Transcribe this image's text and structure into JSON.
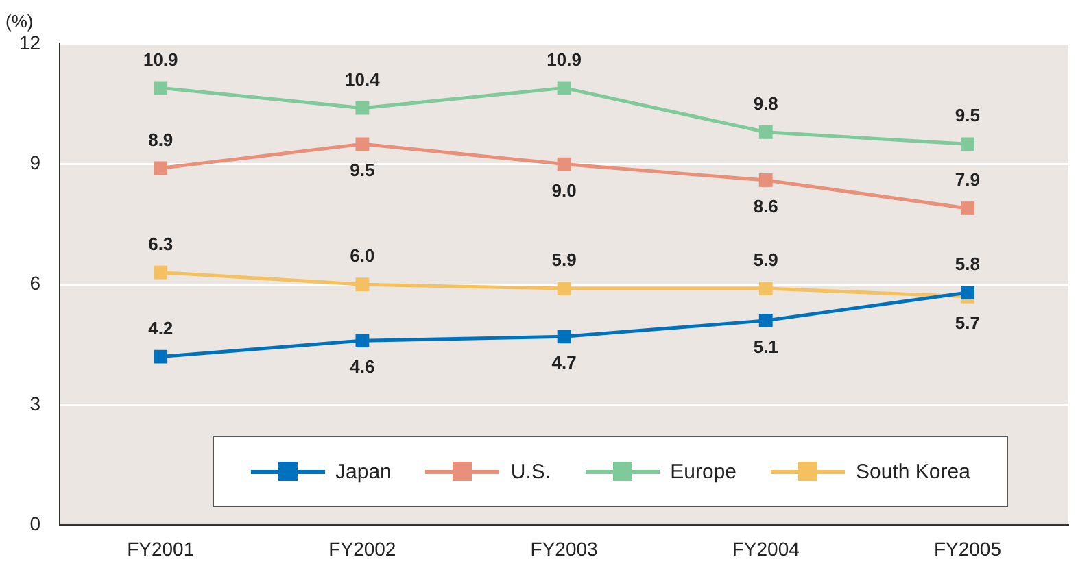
{
  "chart_data": {
    "type": "line",
    "ylabel": "(%)",
    "categories": [
      "FY2001",
      "FY2002",
      "FY2003",
      "FY2004",
      "FY2005"
    ],
    "series": [
      {
        "name": "Japan",
        "color": "#0071bc",
        "values": [
          4.2,
          4.6,
          4.7,
          5.1,
          5.8
        ],
        "value_labels": [
          "4.2",
          "4.6",
          "4.7",
          "5.1",
          "5.8"
        ]
      },
      {
        "name": "U.S.",
        "color": "#e8907a",
        "values": [
          8.9,
          9.5,
          9.0,
          8.6,
          7.9
        ],
        "value_labels": [
          "8.9",
          "9.5",
          "9.0",
          "8.6",
          "7.9"
        ]
      },
      {
        "name": "Europe",
        "color": "#7fc99a",
        "values": [
          10.9,
          10.4,
          10.9,
          9.8,
          9.5
        ],
        "value_labels": [
          "10.9",
          "10.4",
          "10.9",
          "9.8",
          "9.5"
        ]
      },
      {
        "name": "South Korea",
        "color": "#f5c060",
        "values": [
          6.3,
          6.0,
          5.9,
          5.9,
          5.7
        ],
        "value_labels": [
          "6.3",
          "6.0",
          "5.9",
          "5.9",
          "5.7"
        ]
      }
    ],
    "ylim": [
      0,
      12
    ],
    "yticks": [
      0,
      3,
      6,
      9,
      12
    ],
    "grid": "y",
    "legend": "bottom",
    "marker": "square",
    "line_style": "solid"
  }
}
